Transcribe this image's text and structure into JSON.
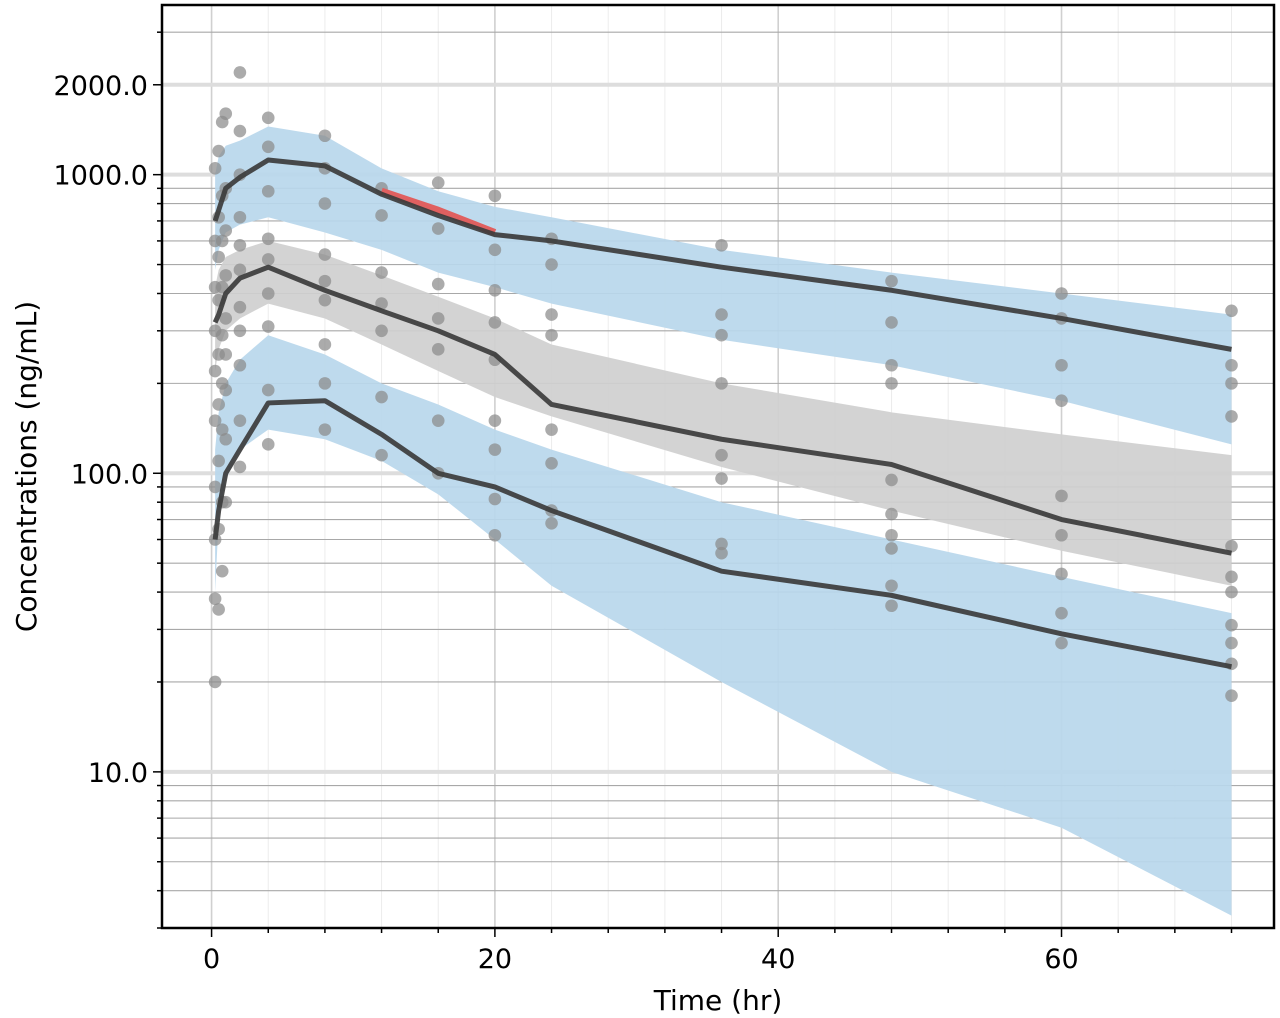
{
  "chart_data": {
    "type": "line",
    "title": "",
    "xlabel": "Time (hr)",
    "ylabel": "Concentrations (ng/mL)",
    "yscale": "log",
    "xlim": [
      -3.5,
      75
    ],
    "ylim": [
      3,
      3700
    ],
    "grid": true,
    "x_ticks": [
      0,
      20,
      40,
      60
    ],
    "x_tick_labels": [
      "0",
      "20",
      "40",
      "60"
    ],
    "y_ticks": [
      10,
      100,
      1000,
      2000
    ],
    "y_tick_labels": [
      "10.0",
      "100.0",
      "1000.0",
      "2000.0"
    ],
    "colors": {
      "prediction_interval": "#b9d7ec",
      "median_interval": "#cfcfcf",
      "observed_percentile_line": "#3c3c3c",
      "observed_points": "#8a8a8a",
      "outside_highlight": "#e06060"
    },
    "bands": [
      {
        "role": "upper-percentile-prediction-interval",
        "x": [
          0.25,
          0.5,
          1,
          2,
          4,
          8,
          12,
          16,
          20,
          24,
          36,
          48,
          60,
          72
        ],
        "lower": [
          480,
          560,
          640,
          680,
          720,
          640,
          560,
          470,
          420,
          370,
          280,
          230,
          175,
          125
        ],
        "upper": [
          1000,
          1150,
          1250,
          1300,
          1450,
          1350,
          1050,
          880,
          780,
          720,
          560,
          470,
          400,
          340
        ]
      },
      {
        "role": "median-prediction-interval",
        "x": [
          0.25,
          0.5,
          1,
          2,
          4,
          8,
          12,
          16,
          20,
          24,
          36,
          48,
          60,
          72
        ],
        "lower": [
          220,
          260,
          300,
          330,
          370,
          330,
          270,
          220,
          180,
          155,
          105,
          75,
          55,
          42
        ],
        "upper": [
          420,
          480,
          530,
          560,
          600,
          540,
          460,
          390,
          330,
          270,
          200,
          160,
          135,
          115
        ]
      },
      {
        "role": "lower-percentile-prediction-interval",
        "x": [
          0.25,
          0.5,
          1,
          2,
          4,
          8,
          12,
          16,
          20,
          24,
          36,
          48,
          60,
          72
        ],
        "lower": [
          40,
          70,
          95,
          120,
          140,
          130,
          110,
          85,
          60,
          42,
          20,
          10,
          6.5,
          3.3
        ],
        "upper": [
          120,
          160,
          200,
          240,
          290,
          250,
          200,
          170,
          140,
          120,
          80,
          60,
          45,
          34
        ]
      }
    ],
    "series": [
      {
        "role": "observed-95th-percentile",
        "x": [
          0.25,
          0.5,
          1,
          2,
          4,
          8,
          12,
          16,
          20,
          24,
          36,
          48,
          60,
          72
        ],
        "values": [
          700,
          760,
          900,
          980,
          1120,
          1070,
          860,
          730,
          630,
          600,
          490,
          410,
          330,
          260
        ]
      },
      {
        "role": "observed-median",
        "x": [
          0.25,
          0.5,
          1,
          2,
          4,
          8,
          12,
          16,
          20,
          24,
          36,
          48,
          60,
          72
        ],
        "values": [
          320,
          340,
          400,
          450,
          490,
          410,
          350,
          300,
          250,
          170,
          130,
          107,
          70,
          54
        ]
      },
      {
        "role": "observed-5th-percentile",
        "x": [
          0.25,
          0.5,
          1,
          2,
          4,
          8,
          12,
          16,
          20,
          24,
          36,
          48,
          60,
          72
        ],
        "values": [
          60,
          75,
          100,
          120,
          172,
          175,
          135,
          100,
          90,
          75,
          47,
          39,
          29,
          22.5
        ]
      }
    ],
    "highlight_segments": [
      {
        "x": [
          12,
          16,
          20
        ],
        "values": [
          880,
          760,
          640
        ]
      }
    ],
    "points": [
      [
        0.25,
        20
      ],
      [
        0.25,
        38
      ],
      [
        0.25,
        60
      ],
      [
        0.25,
        90
      ],
      [
        0.25,
        150
      ],
      [
        0.25,
        220
      ],
      [
        0.25,
        300
      ],
      [
        0.25,
        420
      ],
      [
        0.25,
        600
      ],
      [
        0.25,
        1050
      ],
      [
        0.5,
        35
      ],
      [
        0.5,
        65
      ],
      [
        0.5,
        110
      ],
      [
        0.5,
        170
      ],
      [
        0.5,
        250
      ],
      [
        0.5,
        380
      ],
      [
        0.5,
        530
      ],
      [
        0.5,
        720
      ],
      [
        0.5,
        1200
      ],
      [
        0.75,
        47
      ],
      [
        0.75,
        80
      ],
      [
        0.75,
        140
      ],
      [
        0.75,
        200
      ],
      [
        0.75,
        290
      ],
      [
        0.75,
        420
      ],
      [
        0.75,
        600
      ],
      [
        0.75,
        850
      ],
      [
        0.75,
        1500
      ],
      [
        1,
        80
      ],
      [
        1,
        130
      ],
      [
        1,
        190
      ],
      [
        1,
        250
      ],
      [
        1,
        330
      ],
      [
        1,
        460
      ],
      [
        1,
        650
      ],
      [
        1,
        900
      ],
      [
        1,
        1600
      ],
      [
        2,
        105
      ],
      [
        2,
        150
      ],
      [
        2,
        230
      ],
      [
        2,
        300
      ],
      [
        2,
        360
      ],
      [
        2,
        480
      ],
      [
        2,
        580
      ],
      [
        2,
        720
      ],
      [
        2,
        1000
      ],
      [
        2,
        1400
      ],
      [
        2,
        2200
      ],
      [
        4,
        125
      ],
      [
        4,
        190
      ],
      [
        4,
        310
      ],
      [
        4,
        400
      ],
      [
        4,
        520
      ],
      [
        4,
        610
      ],
      [
        4,
        880
      ],
      [
        4,
        1240
      ],
      [
        4,
        1550
      ],
      [
        8,
        140
      ],
      [
        8,
        200
      ],
      [
        8,
        270
      ],
      [
        8,
        380
      ],
      [
        8,
        440
      ],
      [
        8,
        540
      ],
      [
        8,
        800
      ],
      [
        8,
        1050
      ],
      [
        8,
        1350
      ],
      [
        12,
        115
      ],
      [
        12,
        180
      ],
      [
        12,
        300
      ],
      [
        12,
        370
      ],
      [
        12,
        470
      ],
      [
        12,
        730
      ],
      [
        12,
        900
      ],
      [
        16,
        100
      ],
      [
        16,
        150
      ],
      [
        16,
        260
      ],
      [
        16,
        330
      ],
      [
        16,
        430
      ],
      [
        16,
        660
      ],
      [
        16,
        940
      ],
      [
        20,
        62
      ],
      [
        20,
        82
      ],
      [
        20,
        120
      ],
      [
        20,
        150
      ],
      [
        20,
        240
      ],
      [
        20,
        320
      ],
      [
        20,
        410
      ],
      [
        20,
        560
      ],
      [
        20,
        850
      ],
      [
        24,
        68
      ],
      [
        24,
        75
      ],
      [
        24,
        108
      ],
      [
        24,
        140
      ],
      [
        24,
        290
      ],
      [
        24,
        340
      ],
      [
        24,
        500
      ],
      [
        24,
        610
      ],
      [
        36,
        54
      ],
      [
        36,
        58
      ],
      [
        36,
        96
      ],
      [
        36,
        115
      ],
      [
        36,
        200
      ],
      [
        36,
        290
      ],
      [
        36,
        340
      ],
      [
        36,
        580
      ],
      [
        48,
        36
      ],
      [
        48,
        42
      ],
      [
        48,
        56
      ],
      [
        48,
        62
      ],
      [
        48,
        73
      ],
      [
        48,
        95
      ],
      [
        48,
        200
      ],
      [
        48,
        230
      ],
      [
        48,
        320
      ],
      [
        48,
        440
      ],
      [
        60,
        27
      ],
      [
        60,
        34
      ],
      [
        60,
        46
      ],
      [
        60,
        62
      ],
      [
        60,
        84
      ],
      [
        60,
        175
      ],
      [
        60,
        230
      ],
      [
        60,
        330
      ],
      [
        60,
        400
      ],
      [
        72,
        18
      ],
      [
        72,
        23
      ],
      [
        72,
        27
      ],
      [
        72,
        31
      ],
      [
        72,
        40
      ],
      [
        72,
        45
      ],
      [
        72,
        57
      ],
      [
        72,
        155
      ],
      [
        72,
        200
      ],
      [
        72,
        230
      ],
      [
        72,
        350
      ]
    ]
  }
}
